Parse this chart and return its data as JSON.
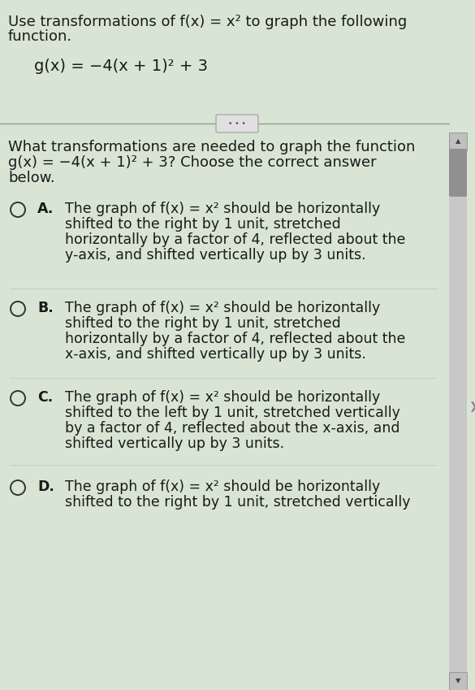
{
  "bg_color": "#d8e5d4",
  "text_color": "#1a1a1a",
  "circle_color": "#333333",
  "separator_color": "#999999",
  "dots_button_color": "#e0e0e0",
  "scrollbar_track": "#c8c8c8",
  "scrollbar_thumb": "#909090",
  "title_line1": "Use transformations of f(x) = x² to graph the following",
  "title_line2": "function.",
  "function_text": "g(x) = −4(x + 1)² + 3",
  "question_line1": "What transformations are needed to graph the function",
  "question_line2": "g(x) = −4(x + 1)² + 3? Choose the correct answer",
  "question_line3": "below.",
  "options": [
    {
      "letter": "A.",
      "lines": [
        "The graph of f(x) = x² should be horizontally",
        "shifted to the right by 1 unit, stretched",
        "horizontally by a factor of 4, reflected about the",
        "y-axis, and shifted vertically up by 3 units."
      ]
    },
    {
      "letter": "B.",
      "lines": [
        "The graph of f(x) = x² should be horizontally",
        "shifted to the right by 1 unit, stretched",
        "horizontally by a factor of 4, reflected about the",
        "x-axis, and shifted vertically up by 3 units."
      ]
    },
    {
      "letter": "C.",
      "lines": [
        "The graph of f(x) = x² should be horizontally",
        "shifted to the left by 1 unit, stretched vertically",
        "by a factor of 4, reflected about the x-axis, and",
        "shifted vertically up by 3 units."
      ]
    },
    {
      "letter": "D.",
      "lines": [
        "The graph of f(x) = x² should be horizontally",
        "shifted to the right by 1 unit, stretched vertically"
      ]
    }
  ],
  "font_size_title": 13.0,
  "font_size_function": 14.0,
  "font_size_question": 13.0,
  "font_size_options": 12.5,
  "font_size_letter": 12.5
}
